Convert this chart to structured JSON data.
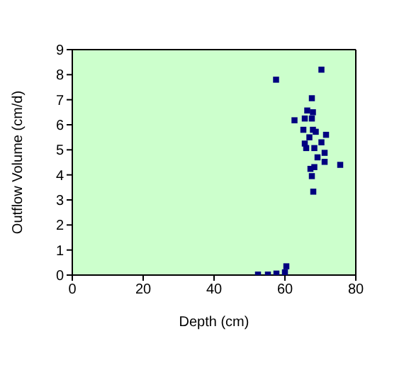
{
  "chart_data": {
    "type": "scatter",
    "xlabel": "Depth (cm)",
    "ylabel": "Outflow Volume (cm/d)",
    "xlim": [
      0,
      80
    ],
    "xticks": [
      0,
      20,
      40,
      60,
      80
    ],
    "ylim": [
      0,
      9
    ],
    "yticks": [
      0,
      1,
      2,
      3,
      4,
      5,
      6,
      7,
      8,
      9
    ],
    "grid": false,
    "legend": false,
    "marker": "square",
    "series": [
      {
        "color": "#000080",
        "x": [
          70.3,
          57.5,
          67.6,
          66.3,
          67.9,
          62.7,
          65.6,
          67.6,
          65.2,
          67.9,
          68.7,
          71.6,
          66.9,
          70.3,
          65.6,
          66,
          68.3,
          71.2,
          69.2,
          71.2,
          75.6,
          68.3,
          67.2,
          67.6,
          68,
          52.4,
          55.2,
          57.6,
          60,
          60.4
        ],
        "values": [
          8.2,
          7.8,
          7.06,
          6.57,
          6.5,
          6.18,
          6.25,
          6.25,
          5.8,
          5.8,
          5.72,
          5.6,
          5.5,
          5.3,
          5.25,
          5.07,
          5.07,
          4.88,
          4.7,
          4.52,
          4.4,
          4.31,
          4.24,
          3.95,
          3.33,
          0.02,
          0.02,
          0.06,
          0.11,
          0.35
        ]
      }
    ]
  }
}
